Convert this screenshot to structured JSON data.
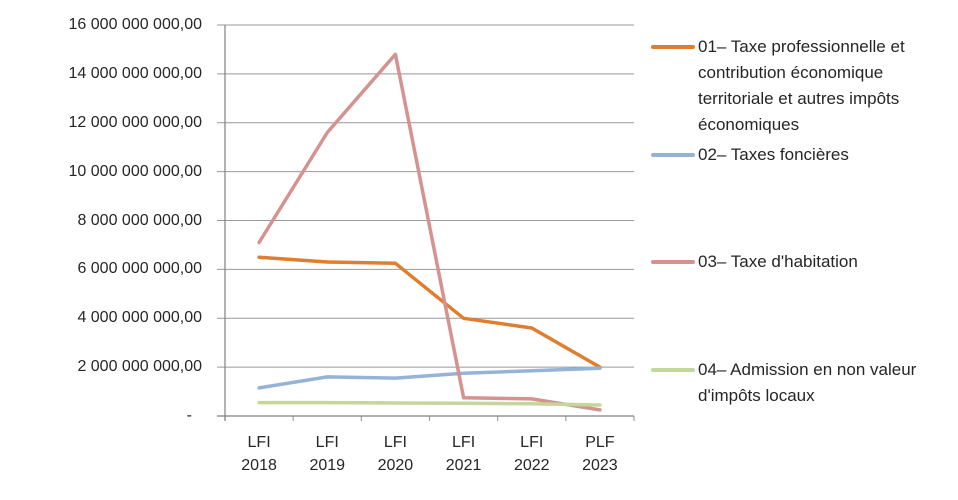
{
  "chart_data": {
    "type": "line",
    "title": "",
    "xlabel": "",
    "ylabel": "",
    "grid": true,
    "legend_position": "right",
    "categories": [
      {
        "top": "LFI",
        "bottom": "2018"
      },
      {
        "top": "LFI",
        "bottom": "2019"
      },
      {
        "top": "LFI",
        "bottom": "2020"
      },
      {
        "top": "LFI",
        "bottom": "2021"
      },
      {
        "top": "LFI",
        "bottom": "2022"
      },
      {
        "top": "PLF",
        "bottom": "2023"
      }
    ],
    "y_axis": {
      "min": 0,
      "max": 16000000000,
      "step": 2000000000,
      "tick_labels": [
        "16 000 000 000,00",
        "14 000 000 000,00",
        "12 000 000 000,00",
        "10 000 000 000,00",
        "8 000 000 000,00",
        "6 000 000 000,00",
        "4 000 000 000,00",
        "2 000 000 000,00",
        "-"
      ]
    },
    "series": [
      {
        "id": "01",
        "name": "01– Taxe professionnelle et contribution économique territoriale et autres impôts économiques",
        "color": "#DE7E2E",
        "values": [
          6500000000,
          6300000000,
          6250000000,
          4000000000,
          3600000000,
          2000000000
        ]
      },
      {
        "id": "02",
        "name": "02– Taxes foncières",
        "color": "#95B3D7",
        "values": [
          1150000000,
          1600000000,
          1550000000,
          1750000000,
          1850000000,
          1950000000
        ]
      },
      {
        "id": "03",
        "name": "03– Taxe d'habitation",
        "color": "#D5928F",
        "values": [
          7100000000,
          11600000000,
          14800000000,
          750000000,
          700000000,
          250000000
        ]
      },
      {
        "id": "04",
        "name": "04– Admission en non valeur d'impôts locaux",
        "color": "#C3D69B",
        "values": [
          550000000,
          550000000,
          530000000,
          520000000,
          500000000,
          450000000
        ]
      }
    ]
  }
}
